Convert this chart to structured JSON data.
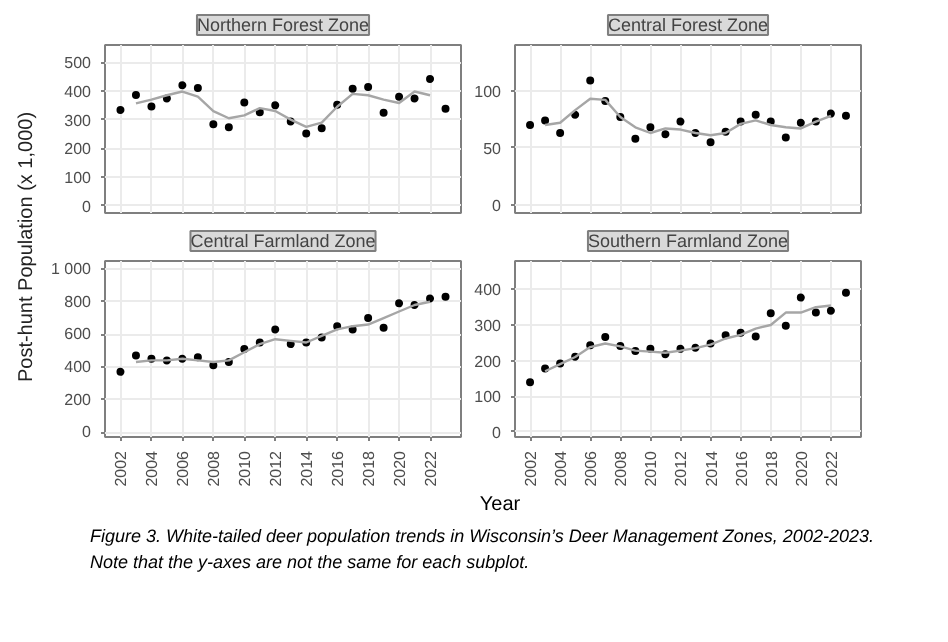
{
  "chart_data": [
    {
      "type": "scatter",
      "title": "Northern Forest Zone",
      "ylabel": "Post-hunt Population (x 1,000)",
      "xlim": [
        2001,
        2024
      ],
      "xticks": [
        2002,
        2004,
        2006,
        2008,
        2010,
        2012,
        2014,
        2016,
        2018,
        2020,
        2022
      ],
      "ylim": [
        -25,
        560
      ],
      "yticks": [
        0,
        100,
        200,
        300,
        400,
        500
      ],
      "grid": true,
      "tick_labels": "y",
      "marker": "circle",
      "series": [
        {
          "color": "#000000",
          "x": [
            2002,
            2003,
            2004,
            2005,
            2006,
            2007,
            2008,
            2009,
            2010,
            2011,
            2012,
            2013,
            2014,
            2015,
            2016,
            2017,
            2018,
            2019,
            2020,
            2021,
            2022,
            2023
          ],
          "values": [
            334,
            386,
            346,
            374,
            420,
            410,
            284,
            274,
            360,
            326,
            350,
            294,
            252,
            270,
            352,
            408,
            414,
            324,
            380,
            374,
            442,
            338
          ]
        },
        {
          "type": "line",
          "marker": "none",
          "color": "#a6a6a6",
          "x": [
            2003,
            2004,
            2005,
            2006,
            2007,
            2008,
            2009,
            2010,
            2011,
            2012,
            2013,
            2014,
            2015,
            2016,
            2017,
            2018,
            2019,
            2020,
            2021,
            2022
          ],
          "values": [
            357,
            370,
            385,
            398,
            380,
            330,
            305,
            315,
            340,
            330,
            300,
            275,
            290,
            345,
            390,
            385,
            370,
            358,
            398,
            385
          ]
        }
      ]
    },
    {
      "type": "scatter",
      "title": "Central Forest Zone",
      "xlim": [
        2001,
        2024
      ],
      "xticks": [
        2002,
        2004,
        2006,
        2008,
        2010,
        2012,
        2014,
        2016,
        2018,
        2020,
        2022
      ],
      "ylim": [
        -7,
        140
      ],
      "yticks": [
        0,
        50,
        100
      ],
      "grid": true,
      "tick_labels": "y",
      "marker": "circle",
      "series": [
        {
          "color": "#000000",
          "x": [
            2002,
            2003,
            2004,
            2005,
            2006,
            2007,
            2008,
            2009,
            2010,
            2011,
            2012,
            2013,
            2014,
            2015,
            2016,
            2017,
            2018,
            2019,
            2020,
            2021,
            2022,
            2023
          ],
          "values": [
            70,
            74,
            63,
            79,
            109,
            91,
            77,
            58,
            68,
            62,
            73,
            63,
            55,
            64,
            73,
            79,
            73,
            59,
            72,
            73,
            80,
            78
          ]
        },
        {
          "type": "line",
          "marker": "none",
          "color": "#a6a6a6",
          "x": [
            2003,
            2004,
            2005,
            2006,
            2007,
            2008,
            2009,
            2010,
            2011,
            2012,
            2013,
            2014,
            2015,
            2016,
            2017,
            2018,
            2019,
            2020,
            2021,
            2022
          ],
          "values": [
            70,
            72,
            83,
            93,
            92,
            77,
            68,
            63,
            67,
            66,
            63,
            61,
            63,
            71,
            74,
            70,
            68,
            67,
            73,
            78
          ]
        }
      ]
    },
    {
      "type": "scatter",
      "title": "Central Farmland Zone",
      "xlabel": "Year",
      "xlim": [
        2001,
        2024
      ],
      "xticks": [
        2002,
        2004,
        2006,
        2008,
        2010,
        2012,
        2014,
        2016,
        2018,
        2020,
        2022
      ],
      "ylim": [
        -30,
        1050
      ],
      "yticks": [
        0,
        200,
        400,
        600,
        800,
        {
          "value": 1000,
          "label": "1 000"
        }
      ],
      "grid": true,
      "marker": "circle",
      "series": [
        {
          "color": "#000000",
          "x": [
            2002,
            2003,
            2004,
            2005,
            2006,
            2007,
            2008,
            2009,
            2010,
            2011,
            2012,
            2013,
            2014,
            2015,
            2016,
            2017,
            2018,
            2019,
            2020,
            2021,
            2022,
            2023
          ],
          "values": [
            370,
            470,
            450,
            440,
            450,
            460,
            410,
            430,
            510,
            550,
            630,
            540,
            550,
            580,
            650,
            630,
            700,
            640,
            790,
            780,
            820,
            830
          ]
        },
        {
          "type": "line",
          "marker": "none",
          "color": "#a6a6a6",
          "x": [
            2003,
            2004,
            2005,
            2006,
            2007,
            2008,
            2009,
            2010,
            2011,
            2012,
            2013,
            2014,
            2015,
            2016,
            2017,
            2018,
            2019,
            2020,
            2021,
            2022
          ],
          "values": [
            430,
            440,
            440,
            450,
            440,
            430,
            440,
            490,
            540,
            570,
            560,
            550,
            590,
            630,
            650,
            660,
            700,
            740,
            780,
            800
          ]
        }
      ]
    },
    {
      "type": "scatter",
      "title": "Southern Farmland Zone",
      "xlim": [
        2001,
        2024
      ],
      "xticks": [
        2002,
        2004,
        2006,
        2008,
        2010,
        2012,
        2014,
        2016,
        2018,
        2020,
        2022
      ],
      "ylim": [
        -15,
        480
      ],
      "yticks": [
        0,
        100,
        200,
        300,
        400
      ],
      "grid": true,
      "marker": "circle",
      "annotations": [
        "Figure 3. White-tailed deer population trends in Wisconsin’s Deer Management Zones, 2002-2023. Note that the y-axes are not the same for each subplot."
      ],
      "series": [
        {
          "color": "#000000",
          "x": [
            2002,
            2003,
            2004,
            2005,
            2006,
            2007,
            2008,
            2009,
            2010,
            2011,
            2012,
            2013,
            2014,
            2015,
            2016,
            2017,
            2018,
            2019,
            2020,
            2021,
            2022,
            2023
          ],
          "values": [
            139,
            178,
            192,
            211,
            243,
            266,
            241,
            227,
            233,
            218,
            233,
            236,
            248,
            271,
            278,
            268,
            333,
            298,
            377,
            335,
            340,
            391
          ]
        },
        {
          "type": "line",
          "marker": "none",
          "color": "#a6a6a6",
          "x": [
            2003,
            2004,
            2005,
            2006,
            2007,
            2008,
            2009,
            2010,
            2011,
            2012,
            2013,
            2014,
            2015,
            2016,
            2017,
            2018,
            2019,
            2020,
            2021,
            2022
          ],
          "values": [
            170,
            190,
            210,
            238,
            248,
            240,
            228,
            225,
            222,
            228,
            235,
            245,
            262,
            272,
            290,
            300,
            335,
            335,
            350,
            355
          ]
        }
      ]
    }
  ]
}
